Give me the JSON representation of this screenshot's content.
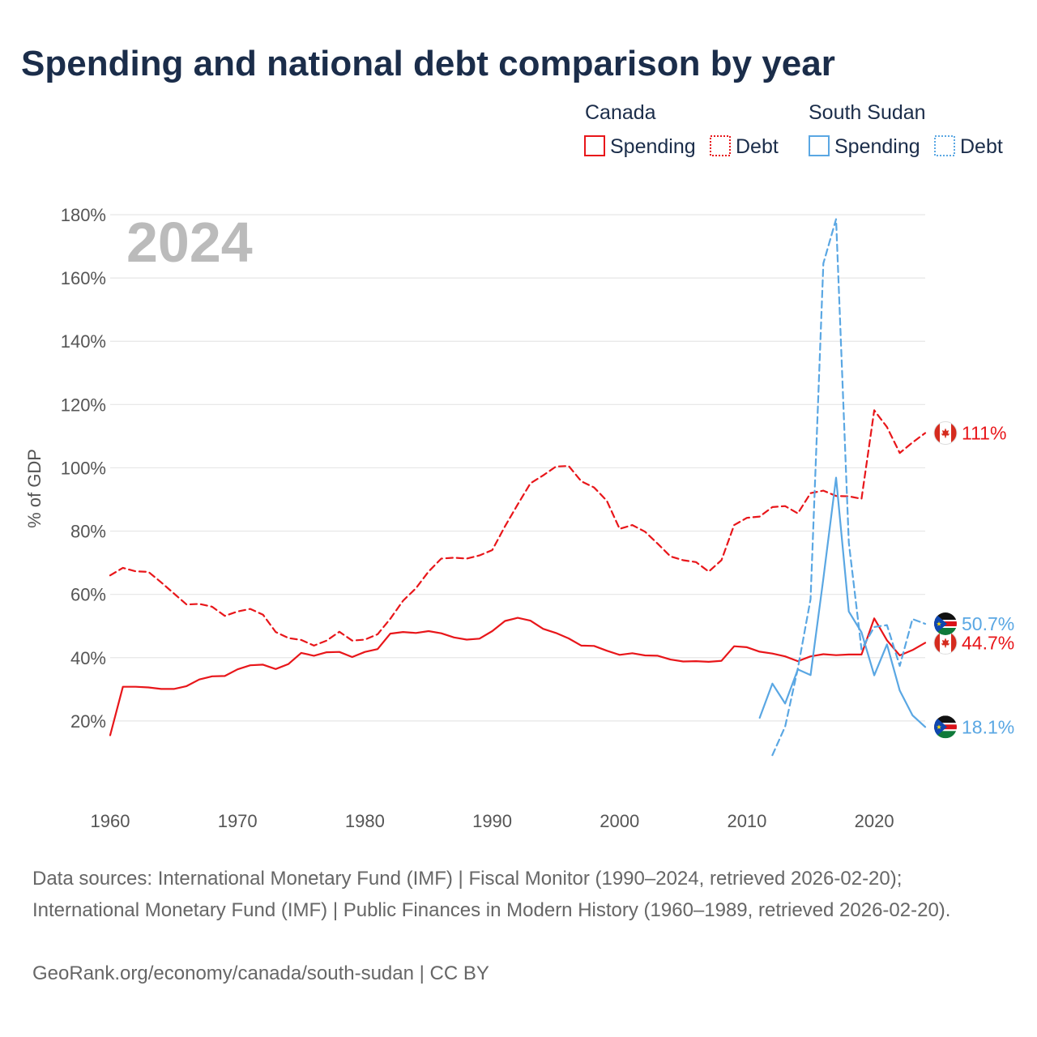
{
  "chart_data": {
    "type": "line",
    "title": "Spending and national debt comparison by year",
    "ylabel": "% of GDP",
    "xlabel": "",
    "xlim": [
      1960,
      2024
    ],
    "ylim": [
      0,
      180
    ],
    "x_ticks": [
      "1960",
      "1970",
      "1980",
      "1990",
      "2000",
      "2010",
      "2020"
    ],
    "y_ticks": [
      "20%",
      "40%",
      "60%",
      "80%",
      "100%",
      "120%",
      "140%",
      "160%",
      "180%"
    ],
    "year_watermark": "2024",
    "legend": {
      "groups": [
        {
          "name": "Canada",
          "items": [
            {
              "label": "Spending",
              "style": "solid",
              "color": "#e8161a"
            },
            {
              "label": "Debt",
              "style": "dotted",
              "color": "#e8161a"
            }
          ]
        },
        {
          "name": "South Sudan",
          "items": [
            {
              "label": "Spending",
              "style": "solid",
              "color": "#5aa7e3"
            },
            {
              "label": "Debt",
              "style": "dotted",
              "color": "#5aa7e3"
            }
          ]
        }
      ]
    },
    "series": [
      {
        "name": "Canada Spending",
        "country": "Canada",
        "measure": "Spending",
        "color": "#e8161a",
        "dashed": false,
        "x": [
          1960,
          1961,
          1962,
          1963,
          1964,
          1965,
          1966,
          1967,
          1968,
          1969,
          1970,
          1971,
          1972,
          1973,
          1974,
          1975,
          1976,
          1977,
          1978,
          1979,
          1980,
          1981,
          1982,
          1983,
          1984,
          1985,
          1986,
          1987,
          1988,
          1989,
          1990,
          1991,
          1992,
          1993,
          1994,
          1995,
          1996,
          1997,
          1998,
          1999,
          2000,
          2001,
          2002,
          2003,
          2004,
          2005,
          2006,
          2007,
          2008,
          2009,
          2010,
          2011,
          2012,
          2013,
          2014,
          2015,
          2016,
          2017,
          2018,
          2019,
          2020,
          2021,
          2022,
          2023,
          2024
        ],
        "values": [
          15.5,
          30.8,
          30.8,
          30.6,
          30.1,
          30.1,
          31.0,
          33.1,
          34.1,
          34.2,
          36.3,
          37.6,
          37.8,
          36.4,
          38.0,
          41.5,
          40.6,
          41.7,
          41.8,
          40.2,
          41.8,
          42.7,
          47.6,
          48.1,
          47.8,
          48.4,
          47.7,
          46.4,
          45.7,
          46.0,
          48.4,
          51.6,
          52.6,
          51.7,
          49.1,
          47.8,
          46.1,
          43.8,
          43.7,
          42.2,
          40.9,
          41.4,
          40.7,
          40.6,
          39.4,
          38.8,
          38.9,
          38.7,
          39.0,
          43.6,
          43.3,
          41.9,
          41.3,
          40.4,
          38.9,
          40.4,
          41.1,
          40.8,
          41.0,
          41.0,
          52.4,
          45.5,
          40.7,
          42.4,
          44.7
        ],
        "end_label": "44.7%"
      },
      {
        "name": "Canada Debt",
        "country": "Canada",
        "measure": "Debt",
        "color": "#e8161a",
        "dashed": true,
        "x": [
          1960,
          1961,
          1962,
          1963,
          1964,
          1965,
          1966,
          1967,
          1968,
          1969,
          1970,
          1971,
          1972,
          1973,
          1974,
          1975,
          1976,
          1977,
          1978,
          1979,
          1980,
          1981,
          1982,
          1983,
          1984,
          1985,
          1986,
          1987,
          1988,
          1989,
          1990,
          1991,
          1992,
          1993,
          1994,
          1995,
          1996,
          1997,
          1998,
          1999,
          2000,
          2001,
          2002,
          2003,
          2004,
          2005,
          2006,
          2007,
          2008,
          2009,
          2010,
          2011,
          2012,
          2013,
          2014,
          2015,
          2016,
          2017,
          2018,
          2019,
          2020,
          2021,
          2022,
          2023,
          2024
        ],
        "values": [
          66.0,
          68.4,
          67.3,
          67.1,
          63.8,
          60.3,
          56.8,
          57.0,
          56.1,
          53.2,
          54.6,
          55.4,
          53.6,
          48.1,
          46.2,
          45.6,
          43.8,
          45.4,
          48.2,
          45.4,
          45.7,
          47.4,
          52.3,
          58.0,
          61.9,
          67.2,
          71.3,
          71.6,
          71.3,
          72.3,
          74.0,
          81.5,
          88.4,
          95.1,
          97.6,
          100.4,
          100.6,
          95.7,
          93.8,
          89.6,
          80.7,
          81.9,
          79.8,
          76.0,
          72.0,
          70.8,
          70.2,
          67.2,
          70.8,
          81.9,
          84.2,
          84.6,
          87.6,
          87.9,
          85.6,
          92.0,
          92.8,
          91.1,
          91.0,
          90.2,
          118.2,
          112.9,
          104.7,
          108.0,
          111.0
        ],
        "end_label": "111%"
      },
      {
        "name": "South Sudan Spending",
        "country": "South Sudan",
        "measure": "Spending",
        "color": "#5aa7e3",
        "dashed": false,
        "x": [
          2011,
          2012,
          2013,
          2014,
          2015,
          2016,
          2017,
          2018,
          2019,
          2020,
          2021,
          2022,
          2023,
          2024
        ],
        "values": [
          21.0,
          31.8,
          25.5,
          36.3,
          34.5,
          65.0,
          96.9,
          54.6,
          48.0,
          34.4,
          44.2,
          29.6,
          21.8,
          18.1
        ],
        "end_label": "18.1%"
      },
      {
        "name": "South Sudan Debt",
        "country": "South Sudan",
        "measure": "Debt",
        "color": "#5aa7e3",
        "dashed": true,
        "x": [
          2012,
          2013,
          2014,
          2015,
          2016,
          2017,
          2018,
          2019,
          2020,
          2021,
          2022,
          2023,
          2024
        ],
        "values": [
          9.2,
          18.2,
          36.6,
          58.5,
          164.6,
          178.6,
          76.4,
          42.6,
          49.7,
          50.3,
          37.4,
          52.2,
          50.7
        ],
        "end_label": "50.7%"
      }
    ]
  },
  "footer": {
    "sources": "Data sources: International Monetary Fund (IMF) | Fiscal Monitor (1990–2024, retrieved 2026-02-20); International Monetary Fund (IMF) | Public Finances in Modern History (1960–1989, retrieved 2026-02-20).",
    "credit": "GeoRank.org/economy/canada/south-sudan | CC BY"
  },
  "icons": {
    "canada": "canada-flag-icon",
    "south_sudan": "south-sudan-flag-icon"
  }
}
